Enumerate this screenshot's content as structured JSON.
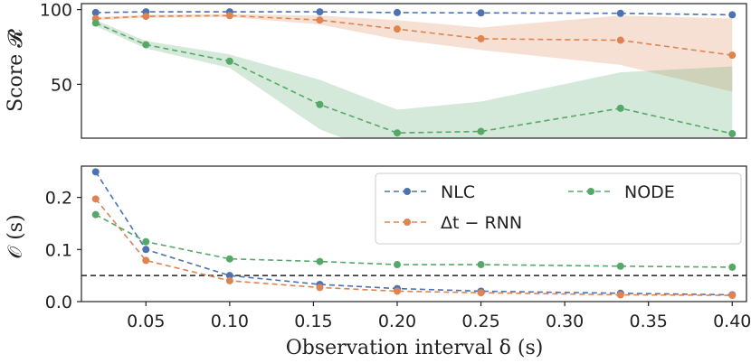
{
  "chart_data": [
    {
      "type": "line",
      "ylabel": "Score 𝓡",
      "x": [
        0.02,
        0.05,
        0.1,
        0.1538,
        0.2,
        0.25,
        0.3333,
        0.4
      ],
      "yticks": [
        50,
        100
      ],
      "ylim": [
        14,
        104
      ],
      "grid": false,
      "series": [
        {
          "values": [
            98,
            98.5,
            98.5,
            98.5,
            98,
            97.8,
            97.5,
            96.5
          ],
          "color": "#4c72b0"
        },
        {
          "values": [
            94,
            95.5,
            96,
            93,
            87,
            80.5,
            79.5,
            69.5
          ],
          "color": "#dd8452",
          "band_low": [
            93,
            94.5,
            95,
            90,
            80,
            73,
            63,
            45
          ],
          "band_high": [
            95,
            96.5,
            97,
            96,
            93,
            88,
            96,
            94
          ]
        },
        {
          "values": [
            91,
            76.5,
            65.5,
            36.5,
            17.5,
            18.5,
            34,
            17
          ],
          "color": "#55a868",
          "band_low": [
            89,
            74,
            61,
            20,
            0,
            0,
            0,
            0
          ],
          "band_high": [
            93,
            79,
            70,
            53,
            33,
            38.5,
            58,
            62
          ]
        }
      ]
    },
    {
      "type": "line",
      "xlabel": "Observation interval δ (s)",
      "ylabel": "𝒪 (s)",
      "x": [
        0.02,
        0.05,
        0.1,
        0.1538,
        0.2,
        0.25,
        0.3333,
        0.4
      ],
      "xticks": [
        "0.05",
        "0.10",
        "0.15",
        "0.20",
        "0.25",
        "0.30",
        "0.35",
        "0.40"
      ],
      "xtick_values": [
        0.05,
        0.1,
        0.15,
        0.2,
        0.25,
        0.3,
        0.35,
        0.4
      ],
      "yticks": [
        "0.0",
        "0.1",
        "0.2"
      ],
      "ytick_values": [
        0,
        0.1,
        0.2
      ],
      "ylim": [
        0,
        0.26
      ],
      "threshold": 0.05,
      "legend_placement": "top-right",
      "grid": false,
      "series": [
        {
          "name": "NLC",
          "values": [
            0.249,
            0.1,
            0.05,
            0.033,
            0.025,
            0.02,
            0.016,
            0.013
          ],
          "color": "#4c72b0"
        },
        {
          "name": "Δt − RNN",
          "values": [
            0.197,
            0.079,
            0.04,
            0.027,
            0.02,
            0.017,
            0.013,
            0.012
          ],
          "color": "#dd8452"
        },
        {
          "name": "NODE",
          "values": [
            0.167,
            0.115,
            0.082,
            0.077,
            0.071,
            0.071,
            0.068,
            0.066
          ],
          "color": "#55a868"
        }
      ]
    }
  ]
}
